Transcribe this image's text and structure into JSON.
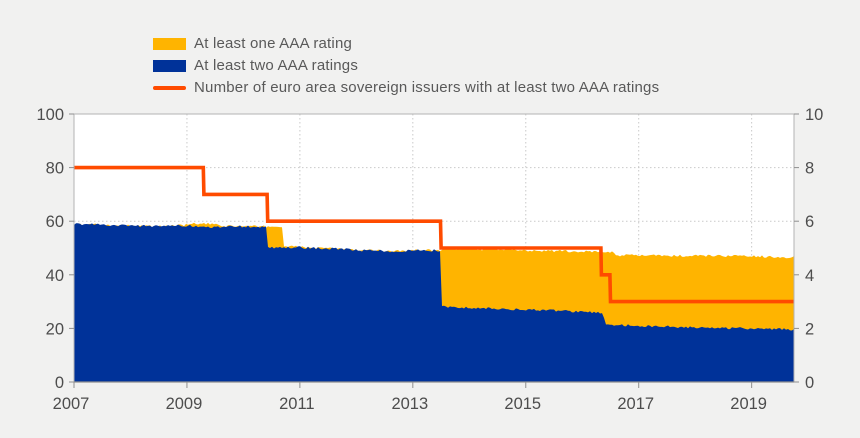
{
  "legend": {
    "items": [
      {
        "label": "At least one AAA rating",
        "swatch": "rect",
        "color": "#FFB400"
      },
      {
        "label": "At least two AAA ratings",
        "swatch": "rect",
        "color": "#003299"
      },
      {
        "label": "Number of euro area sovereign issuers with at least two AAA ratings",
        "swatch": "line",
        "color": "#FF4B00"
      }
    ]
  },
  "chart_data": {
    "type": "area",
    "title": "",
    "x_domain": [
      2007,
      2019.75
    ],
    "x_ticks": [
      2007,
      2009,
      2011,
      2013,
      2015,
      2017,
      2019
    ],
    "left_axis": {
      "range": [
        0,
        100
      ],
      "ticks": [
        0,
        20,
        40,
        60,
        80,
        100
      ]
    },
    "right_axis": {
      "range": [
        0,
        10
      ],
      "ticks": [
        0,
        2,
        4,
        6,
        8,
        10
      ]
    },
    "grid": true,
    "legend_position": "top",
    "series": [
      {
        "name": "At least one AAA rating",
        "type": "area",
        "axis": "left",
        "color": "#FFB400",
        "noise": 0.45,
        "points": [
          [
            2007.0,
            59.0
          ],
          [
            2007.4,
            58.7
          ],
          [
            2008.0,
            58.3
          ],
          [
            2008.5,
            58.1
          ],
          [
            2008.9,
            58.4
          ],
          [
            2009.15,
            59.1
          ],
          [
            2009.45,
            58.9
          ],
          [
            2009.6,
            58.2
          ],
          [
            2010.0,
            58.1
          ],
          [
            2010.41,
            58.0
          ],
          [
            2010.7,
            57.9
          ],
          [
            2010.71,
            50.7
          ],
          [
            2011.3,
            50.0
          ],
          [
            2011.7,
            49.7
          ],
          [
            2012.1,
            49.1
          ],
          [
            2012.6,
            48.9
          ],
          [
            2013.1,
            49.2
          ],
          [
            2013.49,
            49.1
          ],
          [
            2013.5,
            49.7
          ],
          [
            2014.1,
            49.5
          ],
          [
            2014.7,
            49.3
          ],
          [
            2015.3,
            49.0
          ],
          [
            2015.9,
            48.7
          ],
          [
            2016.4,
            48.5
          ],
          [
            2016.57,
            48.4
          ],
          [
            2016.58,
            47.3
          ],
          [
            2017.2,
            47.2
          ],
          [
            2017.8,
            47.0
          ],
          [
            2018.4,
            47.1
          ],
          [
            2019.0,
            46.9
          ],
          [
            2019.4,
            46.7
          ],
          [
            2019.75,
            46.6
          ]
        ]
      },
      {
        "name": "At least two AAA ratings",
        "type": "area",
        "axis": "left",
        "color": "#003299",
        "noise": 0.45,
        "points": [
          [
            2007.0,
            59.0
          ],
          [
            2007.4,
            58.7
          ],
          [
            2008.0,
            58.3
          ],
          [
            2008.5,
            58.1
          ],
          [
            2008.9,
            58.4
          ],
          [
            2009.2,
            58.2
          ],
          [
            2009.3,
            57.7
          ],
          [
            2009.55,
            57.9
          ],
          [
            2009.85,
            58.1
          ],
          [
            2010.15,
            58.0
          ],
          [
            2010.41,
            57.9
          ],
          [
            2010.42,
            50.2
          ],
          [
            2010.9,
            50.3
          ],
          [
            2011.3,
            49.9
          ],
          [
            2011.7,
            49.7
          ],
          [
            2012.1,
            49.1
          ],
          [
            2012.6,
            48.8
          ],
          [
            2013.1,
            49.2
          ],
          [
            2013.49,
            49.0
          ],
          [
            2013.5,
            28.2
          ],
          [
            2014.1,
            27.6
          ],
          [
            2014.7,
            27.2
          ],
          [
            2015.3,
            26.9
          ],
          [
            2015.9,
            26.3
          ],
          [
            2016.38,
            25.9
          ],
          [
            2016.39,
            21.5
          ],
          [
            2017.0,
            21.0
          ],
          [
            2017.6,
            20.6
          ],
          [
            2018.2,
            20.3
          ],
          [
            2018.8,
            20.1
          ],
          [
            2019.3,
            19.8
          ],
          [
            2019.75,
            19.6
          ]
        ]
      },
      {
        "name": "Number of euro area sovereign issuers with at least two AAA ratings",
        "type": "step-line",
        "axis": "right",
        "color": "#FF4B00",
        "points": [
          [
            2007.0,
            8
          ],
          [
            2009.29,
            8
          ],
          [
            2009.3,
            7
          ],
          [
            2010.42,
            7
          ],
          [
            2010.43,
            6
          ],
          [
            2013.49,
            6
          ],
          [
            2013.5,
            5
          ],
          [
            2016.33,
            5
          ],
          [
            2016.34,
            4
          ],
          [
            2016.49,
            4
          ],
          [
            2016.5,
            3
          ],
          [
            2019.75,
            3
          ]
        ]
      }
    ]
  },
  "colors": {
    "background": "#f1f1f0",
    "plot_background": "#ffffff",
    "gridline": "#c9c9c9",
    "plot_border": "#b3b3b3",
    "axis_line": "#8f8f8f",
    "tick_mark": "#8f8f8f",
    "tick_label": "#4d4d4d",
    "legend_text": "#595959"
  }
}
